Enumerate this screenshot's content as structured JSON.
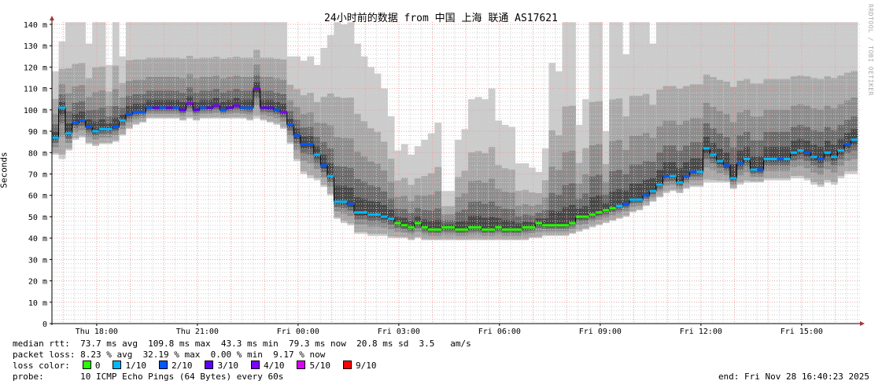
{
  "chart_data": {
    "type": "smokeping",
    "title": "24小时前的数据 from 中国 上海 联通 AS17621",
    "ylabel": "Seconds",
    "ylim": [
      0,
      141
    ],
    "y_ticks": [
      {
        "v": 0,
        "l": "0"
      },
      {
        "v": 10,
        "l": "10 m"
      },
      {
        "v": 20,
        "l": "20 m"
      },
      {
        "v": 30,
        "l": "30 m"
      },
      {
        "v": 40,
        "l": "40 m"
      },
      {
        "v": 50,
        "l": "50 m"
      },
      {
        "v": 60,
        "l": "60 m"
      },
      {
        "v": 70,
        "l": "70 m"
      },
      {
        "v": 80,
        "l": "80 m"
      },
      {
        "v": 90,
        "l": "90 m"
      },
      {
        "v": 100,
        "l": "100 m"
      },
      {
        "v": 110,
        "l": "110 m"
      },
      {
        "v": 120,
        "l": "120 m"
      },
      {
        "v": 130,
        "l": "130 m"
      },
      {
        "v": 140,
        "l": "140 m"
      }
    ],
    "x_range_hours": [
      "Thu 16:40",
      "Fri 16:40"
    ],
    "x_ticks": [
      {
        "h": 1.333,
        "l": "Thu 18:00"
      },
      {
        "h": 4.333,
        "l": "Thu 21:00"
      },
      {
        "h": 7.333,
        "l": "Fri 00:00"
      },
      {
        "h": 10.333,
        "l": "Fri 03:00"
      },
      {
        "h": 13.333,
        "l": "Fri 06:00"
      },
      {
        "h": 16.333,
        "l": "Fri 09:00"
      },
      {
        "h": 19.333,
        "l": "Fri 12:00"
      },
      {
        "h": 22.333,
        "l": "Fri 15:00"
      }
    ],
    "grid": true,
    "median_ms": [
      87,
      101,
      89,
      94,
      95,
      92,
      90,
      91,
      91,
      92,
      95,
      98,
      99,
      99,
      101,
      101,
      101,
      101,
      101,
      100,
      103,
      100,
      101,
      101,
      102,
      100,
      101,
      102,
      101,
      101,
      110,
      101,
      101,
      100,
      99,
      93,
      88,
      84,
      84,
      79,
      74,
      69,
      57,
      57,
      56,
      52,
      52,
      51,
      51,
      50,
      49,
      47,
      46,
      45,
      47,
      45,
      44,
      44,
      45,
      45,
      44,
      44,
      45,
      45,
      44,
      44,
      45,
      44,
      44,
      44,
      45,
      45,
      47,
      46,
      46,
      46,
      46,
      47,
      50,
      50,
      51,
      52,
      53,
      54,
      55,
      56,
      58,
      58,
      60,
      62,
      65,
      69,
      69,
      66,
      69,
      71,
      71,
      82,
      79,
      76,
      74,
      68,
      75,
      77,
      72,
      72,
      77,
      77,
      77,
      77,
      80,
      81,
      80,
      78,
      77,
      80,
      78,
      81,
      84,
      86
    ],
    "smoke_min_ms": [
      79,
      77,
      81,
      86,
      87,
      84,
      83,
      84,
      84,
      85,
      88,
      91,
      93,
      94,
      96,
      96,
      96,
      96,
      96,
      95,
      96,
      95,
      96,
      96,
      96,
      96,
      96,
      96,
      96,
      95,
      96,
      95,
      94,
      93,
      91,
      84,
      76,
      70,
      68,
      67,
      64,
      60,
      49,
      47,
      46,
      42,
      42,
      41,
      41,
      41,
      40,
      40,
      40,
      39,
      40,
      39,
      39,
      39,
      39,
      39,
      39,
      39,
      39,
      39,
      39,
      39,
      39,
      39,
      39,
      39,
      39,
      40,
      40,
      41,
      41,
      41,
      41,
      42,
      43,
      44,
      45,
      46,
      47,
      48,
      49,
      50,
      52,
      53,
      55,
      57,
      59,
      61,
      62,
      61,
      63,
      64,
      64,
      66,
      66,
      66,
      66,
      63,
      65,
      66,
      66,
      66,
      67,
      67,
      67,
      67,
      68,
      68,
      67,
      65,
      64,
      66,
      65,
      68,
      70,
      70
    ],
    "smoke_max_ms": [
      118,
      132,
      141,
      141,
      141,
      131,
      141,
      141,
      121,
      141,
      125,
      141,
      141,
      141,
      141,
      141,
      141,
      141,
      141,
      141,
      141,
      141,
      141,
      141,
      141,
      141,
      141,
      141,
      141,
      141,
      141,
      141,
      141,
      141,
      141,
      125,
      125,
      123,
      125,
      121,
      129,
      135,
      141,
      140,
      141,
      131,
      125,
      120,
      117,
      110,
      97,
      81,
      84,
      79,
      83,
      86,
      89,
      94,
      62,
      62,
      86,
      91,
      105,
      106,
      105,
      110,
      95,
      93,
      92,
      75,
      75,
      73,
      71,
      82,
      122,
      118,
      141,
      141,
      93,
      105,
      141,
      141,
      90,
      141,
      141,
      126,
      141,
      141,
      141,
      131,
      141,
      141,
      141,
      141,
      141,
      141,
      141,
      141,
      141,
      141,
      141,
      141,
      141,
      141,
      141,
      141,
      141,
      141,
      141,
      141,
      141,
      141,
      141,
      141,
      141,
      141,
      141,
      141,
      141,
      141
    ],
    "loss_tenths": [
      1,
      1,
      1,
      2,
      2,
      2,
      1,
      1,
      1,
      2,
      1,
      2,
      2,
      2,
      2,
      3,
      2,
      3,
      2,
      3,
      4,
      3,
      2,
      3,
      4,
      2,
      3,
      4,
      2,
      2,
      4,
      3,
      3,
      2,
      4,
      2,
      2,
      2,
      2,
      1,
      2,
      1,
      1,
      1,
      2,
      1,
      1,
      1,
      1,
      1,
      1,
      0,
      0,
      0,
      0,
      0,
      0,
      0,
      0,
      0,
      0,
      0,
      0,
      0,
      0,
      0,
      0,
      0,
      0,
      0,
      0,
      0,
      0,
      0,
      0,
      0,
      0,
      0,
      0,
      0,
      0,
      0,
      0,
      0,
      1,
      2,
      1,
      1,
      2,
      1,
      1,
      2,
      1,
      1,
      2,
      2,
      1,
      1,
      1,
      1,
      2,
      1,
      2,
      1,
      1,
      2,
      1,
      1,
      2,
      1,
      1,
      1,
      2,
      1,
      2,
      1,
      1,
      1,
      2,
      1
    ],
    "loss_colors": {
      "0": "#26ff00",
      "1": "#00b8ff",
      "2": "#0059ff",
      "3": "#5e00ff",
      "4": "#7e00ff",
      "5": "#dd00ff",
      "9": "#ff0000"
    }
  },
  "legend": {
    "median_rtt": "median rtt:  73.7 ms avg  109.8 ms max  43.3 ms min  79.3 ms now  20.8 ms sd  3.5   am/s",
    "packet_loss": "packet loss: 8.23 % avg  32.19 % max  0.00 % min  9.17 % now",
    "loss_color_label": "loss color:",
    "loss_items": [
      {
        "l": "0",
        "c": "#26ff00"
      },
      {
        "l": "1/10",
        "c": "#00b8ff"
      },
      {
        "l": "2/10",
        "c": "#0059ff"
      },
      {
        "l": "3/10",
        "c": "#5e00ff"
      },
      {
        "l": "4/10",
        "c": "#7e00ff"
      },
      {
        "l": "5/10",
        "c": "#dd00ff"
      },
      {
        "l": "9/10",
        "c": "#ff0000"
      }
    ],
    "probe": "probe:       10 ICMP Echo Pings (64 Bytes) every 60s",
    "end": "end: Fri Nov 28 16:40:23 2025"
  },
  "watermark": "RRDTOOL / TOBI OETIKER"
}
